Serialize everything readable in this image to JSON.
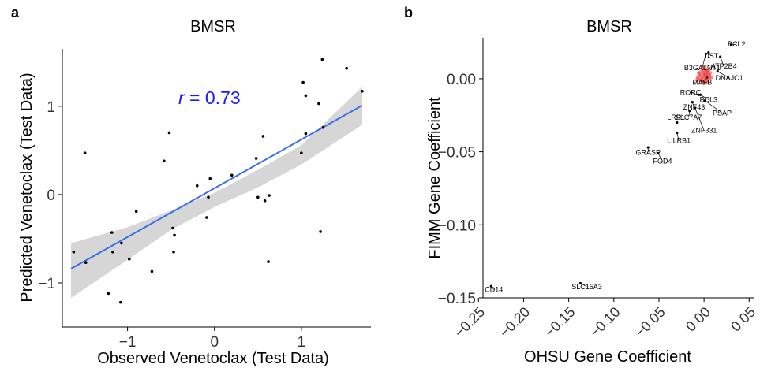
{
  "chart_data": [
    {
      "panel_label": "a",
      "type": "scatter",
      "title": "BMSR",
      "xlabel": "Observed  Venetoclax  (Test Data)",
      "ylabel": "Predicted  Venetoclax  (Test Data)",
      "xlim": [
        -1.75,
        1.8
      ],
      "ylim": [
        -1.5,
        1.65
      ],
      "xticks": [
        -1,
        0,
        1
      ],
      "xtick_labels": [
        "−1",
        "0",
        "1"
      ],
      "yticks": [
        -1,
        0,
        1
      ],
      "ytick_labels": [
        "−1",
        "0",
        "1"
      ],
      "grid": false,
      "annotation": {
        "italic": "r",
        "text": " = 0.73",
        "color": "#1a1aff"
      },
      "fit": {
        "type": "linear",
        "color": "#3b6fe8",
        "band_color": "#d6d6d6",
        "line": [
          [
            -1.65,
            -0.84
          ],
          [
            1.7,
            1.01
          ]
        ],
        "band_upper": [
          [
            -1.65,
            -0.55
          ],
          [
            -1.0,
            -0.37
          ],
          [
            -0.5,
            -0.18
          ],
          [
            0.0,
            0.02
          ],
          [
            0.5,
            0.28
          ],
          [
            1.0,
            0.56
          ],
          [
            1.7,
            1.22
          ]
        ],
        "band_lower": [
          [
            -1.65,
            -1.17
          ],
          [
            -1.0,
            -0.74
          ],
          [
            -0.5,
            -0.4
          ],
          [
            0.0,
            -0.14
          ],
          [
            0.5,
            0.08
          ],
          [
            1.0,
            0.34
          ],
          [
            1.7,
            0.79
          ]
        ]
      },
      "points": [
        [
          -1.62,
          -0.65
        ],
        [
          -1.49,
          0.47
        ],
        [
          -1.48,
          -0.77
        ],
        [
          -1.18,
          -0.43
        ],
        [
          -1.17,
          -0.65
        ],
        [
          -1.22,
          -1.12
        ],
        [
          -1.07,
          -0.55
        ],
        [
          -1.08,
          -1.22
        ],
        [
          -0.98,
          -0.73
        ],
        [
          -0.9,
          -0.19
        ],
        [
          -0.72,
          -0.87
        ],
        [
          -0.58,
          0.38
        ],
        [
          -0.52,
          0.7
        ],
        [
          -0.48,
          -0.38
        ],
        [
          -0.46,
          -0.46
        ],
        [
          -0.47,
          -0.65
        ],
        [
          -0.2,
          0.1
        ],
        [
          -0.09,
          -0.26
        ],
        [
          -0.07,
          -0.03
        ],
        [
          -0.05,
          0.18
        ],
        [
          0.2,
          0.22
        ],
        [
          0.48,
          0.41
        ],
        [
          0.5,
          -0.03
        ],
        [
          0.56,
          0.66
        ],
        [
          0.58,
          -0.07
        ],
        [
          0.63,
          -0.01
        ],
        [
          0.62,
          -0.76
        ],
        [
          1.0,
          0.47
        ],
        [
          1.02,
          1.27
        ],
        [
          1.05,
          1.12
        ],
        [
          1.05,
          0.69
        ],
        [
          1.2,
          1.03
        ],
        [
          1.24,
          1.53
        ],
        [
          1.22,
          -0.42
        ],
        [
          1.25,
          0.76
        ],
        [
          1.52,
          1.43
        ],
        [
          1.7,
          1.17
        ]
      ]
    },
    {
      "panel_label": "b",
      "type": "scatter",
      "title": "BMSR",
      "xlabel": "OHSU Gene Coefficient",
      "ylabel": "FIMM Gene Coefficient",
      "xlim": [
        -0.245,
        0.055
      ],
      "ylim": [
        -0.15,
        0.028
      ],
      "xticks": [
        -0.25,
        -0.2,
        -0.15,
        -0.1,
        -0.05,
        0.0,
        0.05
      ],
      "xtick_labels": [
        "−0.25",
        "−0.20",
        "−0.15",
        "−0.10",
        "−0.05",
        "0.00",
        "0.05"
      ],
      "yticks": [
        -0.15,
        -0.1,
        -0.05,
        0.0
      ],
      "ytick_labels": [
        "−0.15",
        "−0.10",
        "−0.05",
        "0.00"
      ],
      "grid": false,
      "cluster_color": "#ee3333",
      "cluster": [
        [
          -0.006,
          0.0
        ],
        [
          -0.004,
          0.002
        ],
        [
          -0.002,
          0.001
        ],
        [
          0.0,
          0.003
        ],
        [
          0.002,
          0.001
        ],
        [
          0.004,
          0.0
        ],
        [
          0.001,
          -0.002
        ],
        [
          -0.001,
          0.004
        ],
        [
          0.003,
          0.005
        ],
        [
          0.005,
          0.003
        ],
        [
          -0.003,
          -0.001
        ],
        [
          0.0,
          -0.003
        ],
        [
          0.006,
          0.002
        ],
        [
          -0.005,
          0.003
        ],
        [
          0.002,
          0.006
        ],
        [
          -0.002,
          -0.002
        ],
        [
          0.004,
          -0.001
        ],
        [
          0.007,
          0.004
        ],
        [
          -0.007,
          0.001
        ],
        [
          0.001,
          0.002
        ],
        [
          0.003,
          -0.002
        ],
        [
          -0.001,
          0.0
        ],
        [
          0.002,
          0.003
        ],
        [
          -0.004,
          -0.001
        ],
        [
          0.006,
          0.0
        ],
        [
          0.0,
          0.006
        ],
        [
          -0.003,
          0.005
        ],
        [
          0.005,
          0.006
        ],
        [
          0.008,
          0.001
        ],
        [
          -0.008,
          -0.001
        ],
        [
          0.001,
          0.008
        ],
        [
          -0.002,
          0.007
        ],
        [
          0.003,
          0.001
        ],
        [
          -0.006,
          0.004
        ],
        [
          0.004,
          0.004
        ]
      ],
      "labeled_points": [
        {
          "gene": "BCL2",
          "x": 0.03,
          "y": 0.023,
          "label_x": 0.036,
          "label_y": 0.022
        },
        {
          "gene": "DST",
          "x": 0.005,
          "y": 0.018,
          "label_x": 0.008,
          "label_y": 0.014
        },
        {
          "gene": "ATP2B4",
          "x": 0.018,
          "y": 0.015,
          "label_x": 0.022,
          "label_y": 0.007
        },
        {
          "gene": "B3GALNT1",
          "x": 0.002,
          "y": 0.017,
          "label_x": -0.002,
          "label_y": 0.006
        },
        {
          "gene": "DNAJC1",
          "x": 0.015,
          "y": 0.005,
          "label_x": 0.028,
          "label_y": -0.001
        },
        {
          "gene": "MAFB",
          "x": 0.003,
          "y": 0.001,
          "label_x": -0.002,
          "label_y": -0.004
        },
        {
          "gene": "RORC",
          "x": -0.006,
          "y": -0.011,
          "label_x": -0.015,
          "label_y": -0.011
        },
        {
          "gene": "BCL3",
          "x": -0.004,
          "y": -0.011,
          "label_x": 0.005,
          "label_y": -0.016
        },
        {
          "gene": "ZNF43",
          "x": -0.013,
          "y": -0.016,
          "label_x": -0.011,
          "label_y": -0.021
        },
        {
          "gene": "PSAP",
          "x": 0.001,
          "y": -0.015,
          "label_x": 0.02,
          "label_y": -0.025
        },
        {
          "gene": "LRP1",
          "x": -0.03,
          "y": -0.03,
          "label_x": -0.031,
          "label_y": -0.028
        },
        {
          "gene": "SLC7A7",
          "x": -0.016,
          "y": -0.022,
          "label_x": -0.017,
          "label_y": -0.028
        },
        {
          "gene": "ZNF331",
          "x": -0.01,
          "y": -0.02,
          "label_x": 0.0,
          "label_y": -0.037
        },
        {
          "gene": "LILRB1",
          "x": -0.03,
          "y": -0.037,
          "label_x": -0.028,
          "label_y": -0.044
        },
        {
          "gene": "GRASP",
          "x": -0.062,
          "y": -0.047,
          "label_x": -0.062,
          "label_y": -0.052
        },
        {
          "gene": "FGD4",
          "x": -0.051,
          "y": -0.051,
          "label_x": -0.046,
          "label_y": -0.058
        },
        {
          "gene": "CD14",
          "x": -0.236,
          "y": -0.142,
          "label_x": -0.233,
          "label_y": -0.146
        },
        {
          "gene": "SLC15A3",
          "x": -0.137,
          "y": -0.14,
          "label_x": -0.13,
          "label_y": -0.144
        }
      ]
    }
  ]
}
